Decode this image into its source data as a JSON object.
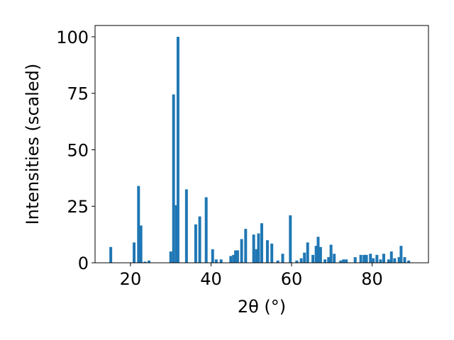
{
  "chart_data": {
    "type": "bar",
    "xlabel": "2θ (°)",
    "ylabel": "Intensities (scaled)",
    "xlim": [
      11.2,
      94.0
    ],
    "ylim": [
      0,
      105
    ],
    "xticks": [
      20,
      40,
      60,
      80
    ],
    "yticks": [
      0,
      25,
      50,
      75,
      100
    ],
    "bar_color": "#1f77b4",
    "bar_width": 0.7,
    "x": [
      15.1,
      20.9,
      22.0,
      22.6,
      23.6,
      24.6,
      30.0,
      30.7,
      31.4,
      31.8,
      33.9,
      36.2,
      37.2,
      38.8,
      40.4,
      41.3,
      42.5,
      44.9,
      45.6,
      46.1,
      46.6,
      47.6,
      48.6,
      50.6,
      51.3,
      51.8,
      52.6,
      54.0,
      55.1,
      56.6,
      57.8,
      59.7,
      61.3,
      62.4,
      63.2,
      64.0,
      65.3,
      66.1,
      66.6,
      67.2,
      68.3,
      69.2,
      69.8,
      70.6,
      72.2,
      72.9,
      73.6,
      75.8,
      77.2,
      78.0,
      78.6,
      79.6,
      80.3,
      81.2,
      82.1,
      82.9,
      84.1,
      84.8,
      85.6,
      86.7,
      87.2,
      88.1,
      89.1
    ],
    "values": [
      7,
      9,
      34,
      16.5,
      0.5,
      1,
      5,
      74.5,
      25.5,
      100,
      32.5,
      17,
      20.5,
      29,
      6,
      1.5,
      1.5,
      3,
      3.5,
      5.5,
      5.5,
      10.5,
      15,
      12.5,
      6,
      13,
      17.5,
      10,
      8.5,
      1,
      4,
      21,
      1,
      2,
      4.5,
      9,
      3.5,
      7.5,
      11.5,
      7,
      1.5,
      2.5,
      8,
      4,
      1,
      1.5,
      1.5,
      2.5,
      3.5,
      3.5,
      3.5,
      4,
      2,
      3.5,
      1.5,
      4,
      1.5,
      5,
      2,
      2.5,
      7.5,
      2.5,
      1
    ]
  }
}
